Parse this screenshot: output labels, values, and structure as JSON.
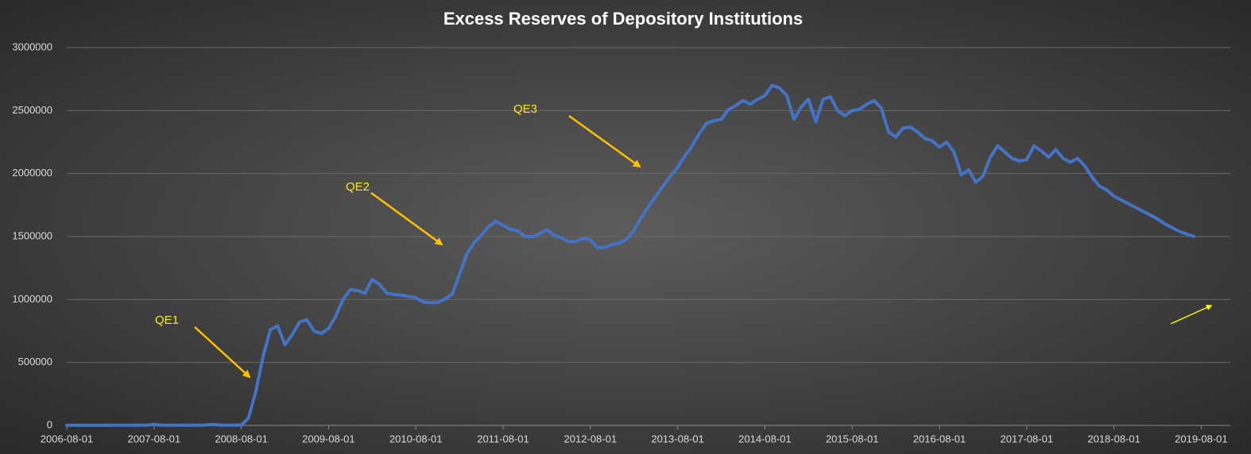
{
  "chart_data": {
    "type": "line",
    "title": "Excess Reserves of Depository Institutions",
    "x": [
      "2006-08-01",
      "2006-09-01",
      "2006-10-01",
      "2006-11-01",
      "2006-12-01",
      "2007-01-01",
      "2007-02-01",
      "2007-03-01",
      "2007-04-01",
      "2007-05-01",
      "2007-06-01",
      "2007-07-01",
      "2007-08-01",
      "2007-09-01",
      "2007-10-01",
      "2007-11-01",
      "2007-12-01",
      "2008-01-01",
      "2008-02-01",
      "2008-03-01",
      "2008-04-01",
      "2008-05-01",
      "2008-06-01",
      "2008-07-01",
      "2008-08-01",
      "2008-09-01",
      "2008-10-01",
      "2008-11-01",
      "2008-12-01",
      "2009-01-01",
      "2009-02-01",
      "2009-03-01",
      "2009-04-01",
      "2009-05-01",
      "2009-06-01",
      "2009-07-01",
      "2009-08-01",
      "2009-09-01",
      "2009-10-01",
      "2009-11-01",
      "2009-12-01",
      "2010-01-01",
      "2010-02-01",
      "2010-03-01",
      "2010-04-01",
      "2010-05-01",
      "2010-06-01",
      "2010-07-01",
      "2010-08-01",
      "2010-09-01",
      "2010-10-01",
      "2010-11-01",
      "2010-12-01",
      "2011-01-01",
      "2011-02-01",
      "2011-03-01",
      "2011-04-01",
      "2011-05-01",
      "2011-06-01",
      "2011-07-01",
      "2011-08-01",
      "2011-09-01",
      "2011-10-01",
      "2011-11-01",
      "2011-12-01",
      "2012-01-01",
      "2012-02-01",
      "2012-03-01",
      "2012-04-01",
      "2012-05-01",
      "2012-06-01",
      "2012-07-01",
      "2012-08-01",
      "2012-09-01",
      "2012-10-01",
      "2012-11-01",
      "2012-12-01",
      "2013-01-01",
      "2013-02-01",
      "2013-03-01",
      "2013-04-01",
      "2013-05-01",
      "2013-06-01",
      "2013-07-01",
      "2013-08-01",
      "2013-09-01",
      "2013-10-01",
      "2013-11-01",
      "2013-12-01",
      "2014-01-01",
      "2014-02-01",
      "2014-03-01",
      "2014-04-01",
      "2014-05-01",
      "2014-06-01",
      "2014-07-01",
      "2014-08-01",
      "2014-09-01",
      "2014-10-01",
      "2014-11-01",
      "2014-12-01",
      "2015-01-01",
      "2015-02-01",
      "2015-03-01",
      "2015-04-01",
      "2015-05-01",
      "2015-06-01",
      "2015-07-01",
      "2015-08-01",
      "2015-09-01",
      "2015-10-01",
      "2015-11-01",
      "2015-12-01",
      "2016-01-01",
      "2016-02-01",
      "2016-03-01",
      "2016-04-01",
      "2016-05-01",
      "2016-06-01",
      "2016-07-01",
      "2016-08-01",
      "2016-09-01",
      "2016-10-01",
      "2016-11-01",
      "2016-12-01",
      "2017-01-01",
      "2017-02-01",
      "2017-03-01",
      "2017-04-01",
      "2017-05-01",
      "2017-06-01",
      "2017-07-01",
      "2017-08-01",
      "2017-09-01",
      "2017-10-01",
      "2017-11-01",
      "2017-12-01",
      "2018-01-01",
      "2018-02-01",
      "2018-03-01",
      "2018-04-01",
      "2018-05-01",
      "2018-06-01",
      "2018-07-01",
      "2018-08-01",
      "2018-09-01",
      "2018-10-01",
      "2018-11-01",
      "2018-12-01",
      "2019-01-01",
      "2019-02-01",
      "2019-03-01",
      "2019-04-01",
      "2019-05-01",
      "2019-06-01",
      "2019-07-01"
    ],
    "series": [
      {
        "color": "#4472c4",
        "values": [
          1800,
          1900,
          1700,
          1900,
          1800,
          1700,
          1600,
          1700,
          1800,
          1900,
          1700,
          2000,
          8000,
          2500,
          1800,
          1900,
          2600,
          1700,
          1600,
          3000,
          8000,
          2500,
          2100,
          2100,
          2100,
          60000,
          270000,
          550000,
          760000,
          790000,
          640000,
          720000,
          820000,
          840000,
          750000,
          730000,
          770000,
          870000,
          1000000,
          1080000,
          1070000,
          1050000,
          1160000,
          1120000,
          1050000,
          1040000,
          1035000,
          1025000,
          1015000,
          980000,
          975000,
          975000,
          1005000,
          1040000,
          1200000,
          1360000,
          1450000,
          1510000,
          1580000,
          1620000,
          1590000,
          1555000,
          1545000,
          1500000,
          1500000,
          1520000,
          1555000,
          1510000,
          1490000,
          1460000,
          1460000,
          1485000,
          1475000,
          1410000,
          1415000,
          1435000,
          1450000,
          1480000,
          1550000,
          1650000,
          1740000,
          1820000,
          1900000,
          1980000,
          2050000,
          2140000,
          2220000,
          2320000,
          2400000,
          2420000,
          2430000,
          2510000,
          2540000,
          2580000,
          2550000,
          2590000,
          2620000,
          2700000,
          2680000,
          2620000,
          2430000,
          2530000,
          2590000,
          2410000,
          2590000,
          2610000,
          2500000,
          2460000,
          2500000,
          2510000,
          2550000,
          2580000,
          2520000,
          2330000,
          2290000,
          2360000,
          2370000,
          2330000,
          2280000,
          2260000,
          2210000,
          2250000,
          2170000,
          1990000,
          2030000,
          1930000,
          1980000,
          2130000,
          2220000,
          2170000,
          2120000,
          2100000,
          2110000,
          2220000,
          2180000,
          2130000,
          2190000,
          2120000,
          2090000,
          2120000,
          2060000,
          1970000,
          1900000,
          1870000,
          1820000,
          1790000,
          1760000,
          1730000,
          1700000,
          1670000,
          1640000,
          1600000,
          1570000,
          1540000,
          1520000,
          1500000
        ]
      }
    ],
    "xlim": [
      "2006-08-01",
      "2019-12-01"
    ],
    "xticks": [
      "2006-08-01",
      "2007-08-01",
      "2008-08-01",
      "2009-08-01",
      "2010-08-01",
      "2011-08-01",
      "2012-08-01",
      "2013-08-01",
      "2014-08-01",
      "2015-08-01",
      "2016-08-01",
      "2017-08-01",
      "2018-08-01",
      "2019-08-01"
    ],
    "ylim": [
      0,
      3000000
    ],
    "yticks": [
      0,
      500000,
      1000000,
      1500000,
      2000000,
      2500000,
      3000000
    ],
    "grid": true,
    "annotations": [
      "QE1",
      "QE2",
      "QE3"
    ]
  }
}
